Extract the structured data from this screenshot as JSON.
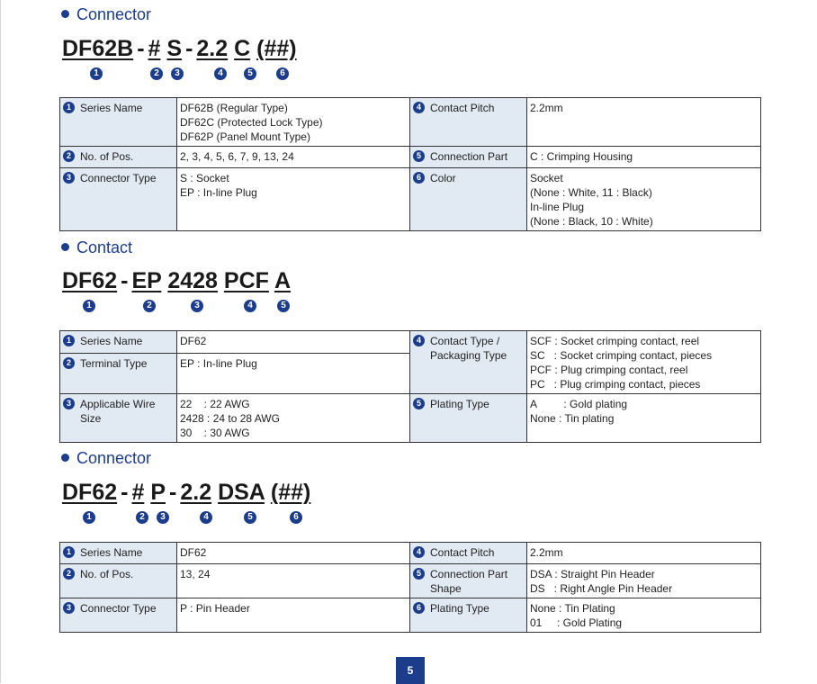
{
  "sections": [
    {
      "title": "Connector",
      "part": [
        "DF62B",
        "#",
        "S",
        "2.2",
        "C",
        "(##)"
      ],
      "bubbles": [
        "1",
        "2",
        "3",
        "4",
        "5",
        "6"
      ],
      "rows": [
        {
          "l_num": "1",
          "l_label": "Series Name",
          "l_value": [
            "DF62B (Regular Type)",
            "DF62C (Protected Lock Type)",
            "DF62P (Panel Mount Type)"
          ],
          "r_num": "4",
          "r_label": "Contact Pitch",
          "r_value": [
            "2.2mm"
          ]
        },
        {
          "l_num": "2",
          "l_label": "No. of Pos.",
          "l_value": [
            "2, 3, 4, 5, 6, 7, 9, 13, 24"
          ],
          "r_num": "5",
          "r_label": "Connection Part",
          "r_value": [
            "C : Crimping Housing"
          ]
        },
        {
          "l_num": "3",
          "l_label": "Connector Type",
          "l_value": [
            "S : Socket",
            "EP : In-line Plug"
          ],
          "r_num": "6",
          "r_label": "Color",
          "r_value": [
            "Socket",
            "(None : White, 11 : Black)",
            "In-line Plug",
            "(None : Black, 10 : White)"
          ]
        }
      ]
    },
    {
      "title": "Contact",
      "part": [
        "DF62",
        "EP",
        "2428",
        "PCF",
        "A"
      ],
      "bubbles": [
        "1",
        "2",
        "3",
        "4",
        "5"
      ],
      "rows": [
        {
          "l_num": "1",
          "l_label": "Series Name",
          "l_value": [
            "DF62"
          ],
          "r_num": "4",
          "r_label": [
            "Contact Type /",
            "Packaging Type"
          ],
          "r_value": [
            "SCF : Socket crimping contact, reel",
            "SC   : Socket crimping contact, pieces",
            "PCF : Plug crimping contact, reel",
            "PC   : Plug crimping contact, pieces"
          ]
        },
        {
          "l_num": "2",
          "l_label": "Terminal Type",
          "l_value": [
            "EP : In-line Plug"
          ]
        },
        {
          "l_num": "3",
          "l_label": [
            "Applicable Wire",
            "Size"
          ],
          "l_value": [
            "22    : 22 AWG",
            "2428 : 24 to 28 AWG",
            "30    : 30 AWG"
          ],
          "r_num": "5",
          "r_label": "Plating Type",
          "r_value": [
            "A         : Gold plating",
            "None : Tin plating"
          ]
        }
      ]
    },
    {
      "title": "Connector",
      "part": [
        "DF62",
        "#",
        "P",
        "2.2",
        "DSA",
        "(##)"
      ],
      "bubbles": [
        "1",
        "2",
        "3",
        "4",
        "5",
        "6"
      ],
      "rows": [
        {
          "l_num": "1",
          "l_label": "Series Name",
          "l_value": [
            "DF62"
          ],
          "r_num": "4",
          "r_label": "Contact Pitch",
          "r_value": [
            "2.2mm"
          ]
        },
        {
          "l_num": "2",
          "l_label": "No. of Pos.",
          "l_value": [
            "13, 24"
          ],
          "r_num": "5",
          "r_label": [
            "Connection Part",
            "Shape"
          ],
          "r_value": [
            "DSA : Straight Pin Header",
            "DS   : Right Angle Pin Header"
          ]
        },
        {
          "l_num": "3",
          "l_label": "Connector Type",
          "l_value": [
            "P : Pin Header"
          ],
          "r_num": "6",
          "r_label": "Plating Type",
          "r_value": [
            "None : Tin Plating",
            "01     : Gold Plating"
          ]
        }
      ]
    }
  ],
  "page_number": "5",
  "colors": {
    "accent": "#1c3d8c",
    "label_bg": "#e1eaf2",
    "border": "#333333"
  }
}
